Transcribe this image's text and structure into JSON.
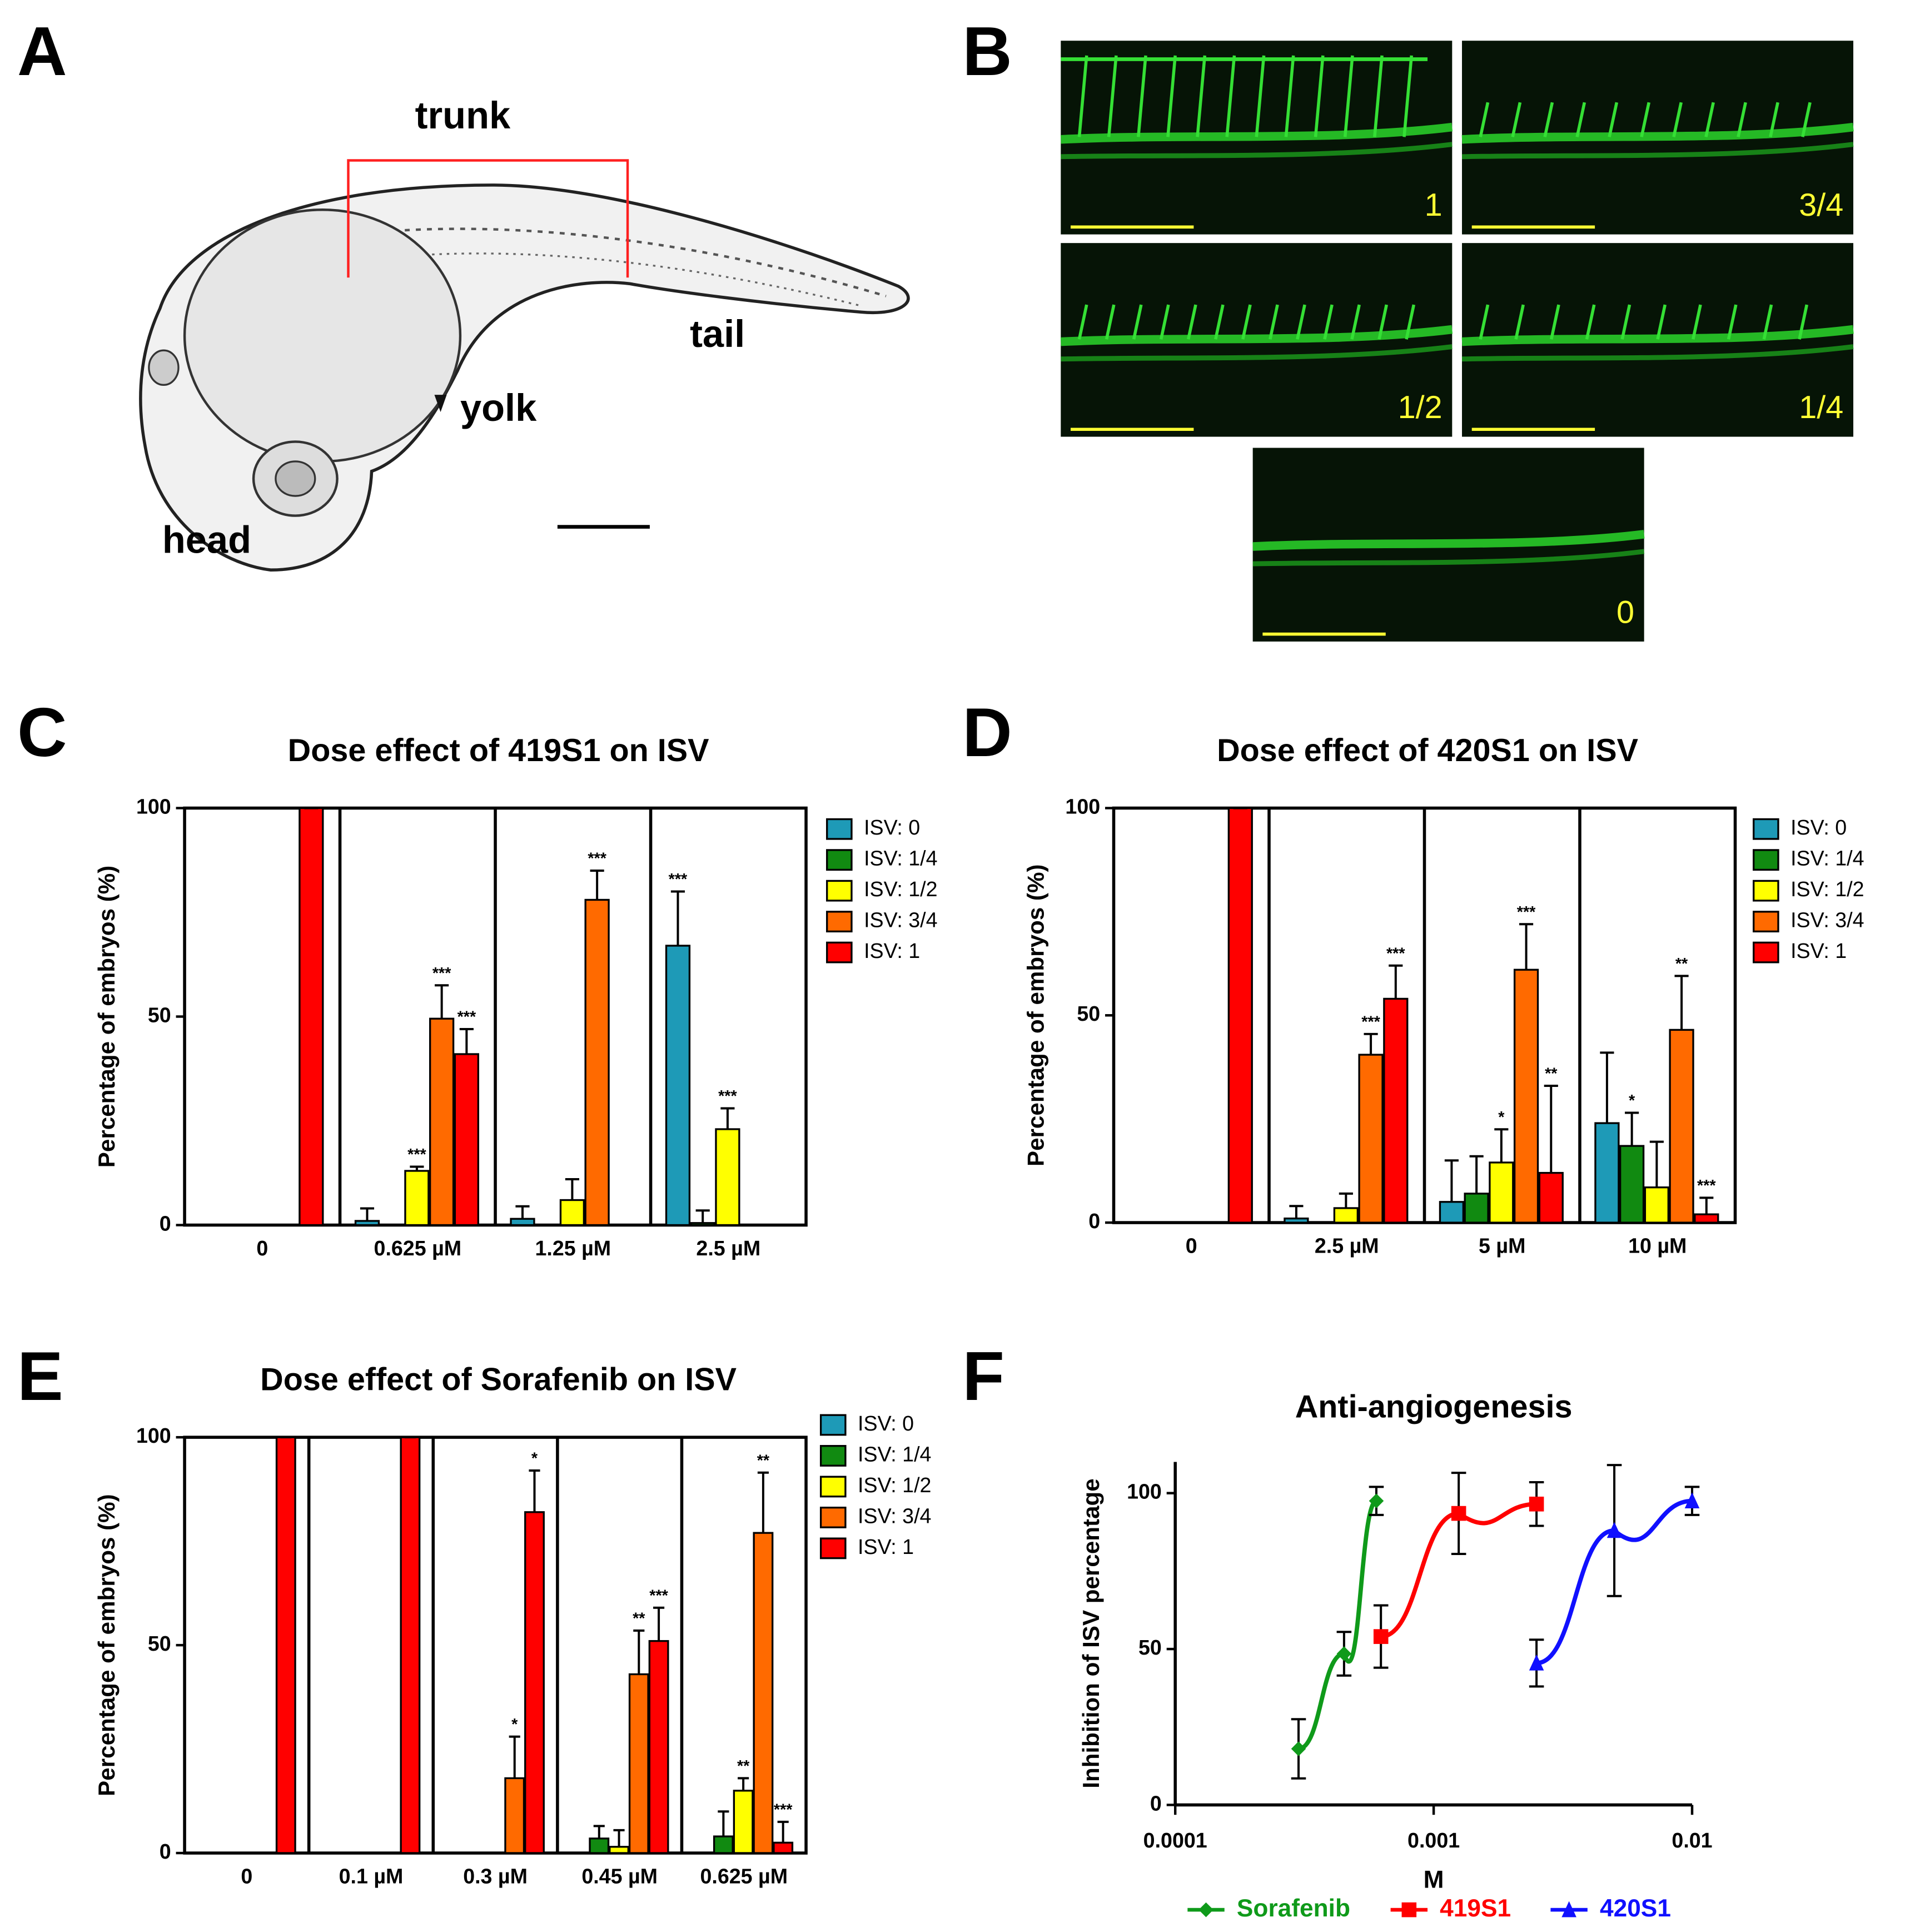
{
  "panel_a": {
    "letter": "A",
    "trunk": "trunk",
    "tail": "tail",
    "yolk": "yolk",
    "head": "head"
  },
  "panel_b": {
    "letter": "B",
    "images": [
      "1",
      "3/4",
      "1/2",
      "1/4",
      "0"
    ]
  },
  "chart_data": [
    {
      "type": "bar",
      "letter": "C",
      "title": "Dose effect of 419S1 on ISV",
      "y_label": "Percentage of embryos (%)",
      "categories": [
        "0",
        "0.625 µM",
        "1.25 µM",
        "2.5 µM"
      ],
      "ylim": [
        0,
        100
      ],
      "yticks": [
        0,
        50,
        100
      ],
      "series": [
        {
          "name": "ISV: 0",
          "color": "#1e9ab7",
          "values": [
            0,
            1,
            1.5,
            67
          ],
          "errors": [
            0,
            3,
            3,
            13
          ],
          "annotations": [
            null,
            null,
            null,
            "***"
          ]
        },
        {
          "name": "ISV: 1/4",
          "color": "#118a11",
          "values": [
            0,
            0,
            0,
            0.5
          ],
          "errors": [
            0,
            0,
            0,
            3
          ],
          "annotations": [
            null,
            null,
            null,
            null
          ]
        },
        {
          "name": "ISV: 1/2",
          "color": "#ffff00",
          "values": [
            0,
            13,
            6,
            23
          ],
          "errors": [
            0,
            1,
            5,
            5
          ],
          "annotations": [
            null,
            "***",
            null,
            "***"
          ]
        },
        {
          "name": "ISV: 3/4",
          "color": "#ff6a00",
          "values": [
            0,
            49.5,
            78,
            0
          ],
          "errors": [
            0,
            8,
            7,
            0
          ],
          "annotations": [
            null,
            "***",
            "***",
            null
          ]
        },
        {
          "name": "ISV: 1",
          "color": "#ff0000",
          "values": [
            100,
            41,
            0,
            0
          ],
          "errors": [
            0,
            6,
            0,
            0
          ],
          "annotations": [
            null,
            "***",
            null,
            null
          ]
        }
      ]
    },
    {
      "type": "bar",
      "letter": "D",
      "title": "Dose effect of 420S1 on ISV",
      "y_label": "Percentage of embryos (%)",
      "categories": [
        "0",
        "2.5 µM",
        "5 µM",
        "10 µM"
      ],
      "ylim": [
        0,
        100
      ],
      "yticks": [
        0,
        50,
        100
      ],
      "series": [
        {
          "name": "ISV: 0",
          "color": "#1e9ab7",
          "values": [
            0,
            1,
            5,
            24
          ],
          "errors": [
            0,
            3,
            10,
            17
          ],
          "annotations": [
            null,
            null,
            null,
            null
          ]
        },
        {
          "name": "ISV: 1/4",
          "color": "#118a11",
          "values": [
            0,
            0,
            7,
            18.5
          ],
          "errors": [
            0,
            0,
            9,
            8
          ],
          "annotations": [
            null,
            null,
            null,
            "*"
          ]
        },
        {
          "name": "ISV: 1/2",
          "color": "#ffff00",
          "values": [
            0,
            3.5,
            14.5,
            8.5
          ],
          "errors": [
            0,
            3.5,
            8,
            11
          ],
          "annotations": [
            null,
            null,
            "*",
            null
          ]
        },
        {
          "name": "ISV: 3/4",
          "color": "#ff6a00",
          "values": [
            0,
            40.5,
            61,
            46.5
          ],
          "errors": [
            0,
            5,
            11,
            13
          ],
          "annotations": [
            null,
            "***",
            "***",
            "**"
          ]
        },
        {
          "name": "ISV: 1",
          "color": "#ff0000",
          "values": [
            100,
            54,
            12,
            2
          ],
          "errors": [
            0,
            8,
            21,
            4
          ],
          "annotations": [
            null,
            "***",
            "**",
            "***"
          ]
        }
      ]
    },
    {
      "type": "bar",
      "letter": "E",
      "title": "Dose effect of Sorafenib on ISV",
      "y_label": "Percentage of embryos (%)",
      "categories": [
        "0",
        "0.1 µM",
        "0.3  µM",
        "0.45 µM",
        "0.625 µM"
      ],
      "ylim": [
        0,
        100
      ],
      "yticks": [
        0,
        50,
        100
      ],
      "series": [
        {
          "name": "ISV: 0",
          "color": "#1e9ab7",
          "values": [
            0,
            0,
            0,
            0,
            0
          ],
          "errors": [
            0,
            0,
            0,
            0,
            0
          ],
          "annotations": [
            null,
            null,
            null,
            null,
            null
          ]
        },
        {
          "name": "ISV: 1/4",
          "color": "#118a11",
          "values": [
            0,
            0,
            0,
            3.5,
            4
          ],
          "errors": [
            0,
            0,
            0,
            3,
            6
          ],
          "annotations": [
            null,
            null,
            null,
            null,
            null
          ]
        },
        {
          "name": "ISV: 1/2",
          "color": "#ffff00",
          "values": [
            0,
            0,
            0,
            1.5,
            15
          ],
          "errors": [
            0,
            0,
            0,
            4,
            3
          ],
          "annotations": [
            null,
            null,
            null,
            null,
            "**"
          ]
        },
        {
          "name": "ISV: 3/4",
          "color": "#ff6a00",
          "values": [
            0,
            0,
            18,
            43,
            77
          ],
          "errors": [
            0,
            0,
            10,
            10.5,
            14.5
          ],
          "annotations": [
            null,
            null,
            "*",
            "**",
            "**"
          ]
        },
        {
          "name": "ISV: 1",
          "color": "#ff0000",
          "values": [
            100,
            100,
            82,
            51,
            2.5
          ],
          "errors": [
            0,
            0,
            10,
            8,
            5
          ],
          "annotations": [
            null,
            null,
            "*",
            "***",
            "***"
          ]
        }
      ]
    },
    {
      "type": "line",
      "letter": "F",
      "title": "Anti-angiogenesis",
      "x_label": "M",
      "y_label": "Inhibition of ISV percentage",
      "xscale": "log",
      "xlim": [
        0.0001,
        0.01
      ],
      "xticks": [
        0.0001,
        0.001,
        0.01
      ],
      "ylim": [
        0,
        110
      ],
      "yticks": [
        0,
        50,
        100
      ],
      "series": [
        {
          "name": "Sorafenib",
          "color": "#0f9a1a",
          "marker": "diamond",
          "x": [
            0.0003,
            0.00045,
            0.0006
          ],
          "values": [
            18,
            48.5,
            97.5
          ],
          "errors": [
            9.5,
            7,
            4.5
          ]
        },
        {
          "name": "419S1",
          "color": "#ff0000",
          "marker": "square",
          "x": [
            0.000625,
            0.00125,
            0.0025
          ],
          "values": [
            54,
            93.5,
            96.5
          ],
          "errors": [
            10,
            13,
            7
          ]
        },
        {
          "name": "420S1",
          "color": "#1010ff",
          "marker": "triangle",
          "x": [
            0.0025,
            0.005,
            0.01
          ],
          "values": [
            45.5,
            88,
            97.5
          ],
          "errors": [
            7.5,
            21,
            4.5
          ]
        }
      ]
    }
  ]
}
